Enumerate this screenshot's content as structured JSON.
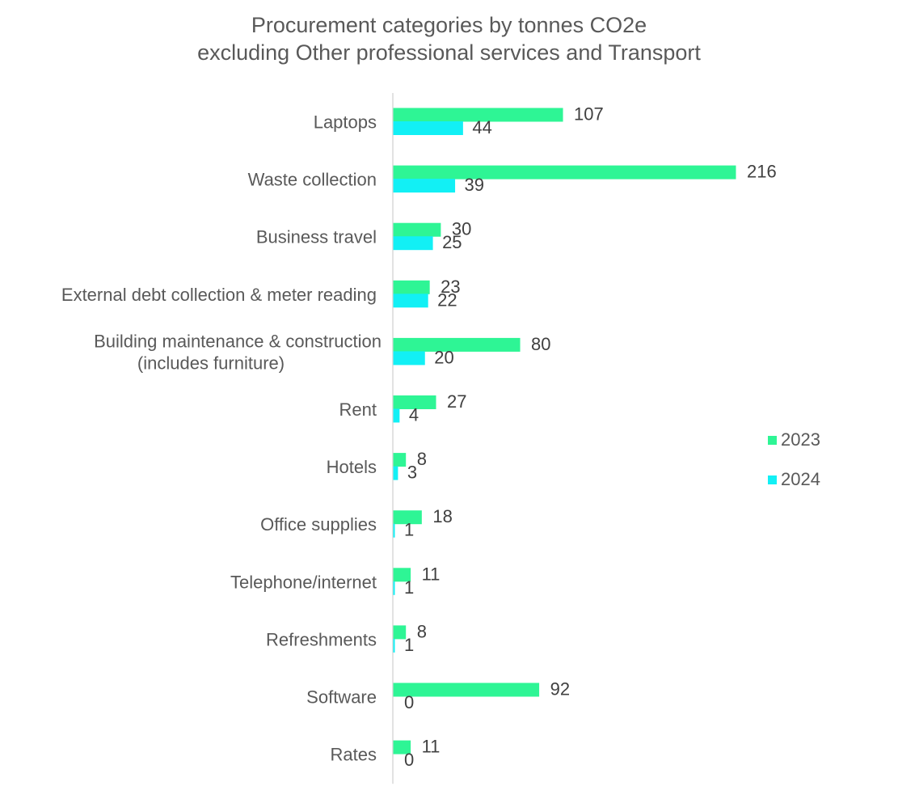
{
  "chart_data": {
    "type": "bar",
    "orientation": "horizontal",
    "title": [
      "Procurement categories by tonnes CO2e",
      "excluding Other professional services and Transport"
    ],
    "categories": [
      [
        "Laptops"
      ],
      [
        "Waste collection"
      ],
      [
        "Business travel"
      ],
      [
        "External debt collection & meter reading"
      ],
      [
        "Building maintenance & construction",
        "(includes furniture)"
      ],
      [
        "Rent"
      ],
      [
        "Hotels"
      ],
      [
        "Office supplies"
      ],
      [
        "Telephone/internet"
      ],
      [
        "Refreshments"
      ],
      [
        "Software"
      ],
      [
        "Rates"
      ]
    ],
    "series": [
      {
        "name": "2023",
        "color": "#2EF595",
        "values": [
          107,
          216,
          30,
          23,
          80,
          27,
          8,
          18,
          11,
          8,
          92,
          11
        ]
      },
      {
        "name": "2024",
        "color": "#12F0F5",
        "values": [
          44,
          39,
          25,
          22,
          20,
          4,
          3,
          1,
          1,
          1,
          0,
          0
        ]
      }
    ],
    "xlim": [
      0,
      216
    ],
    "legend": "right",
    "grid": false,
    "xlabel": "",
    "ylabel": ""
  }
}
